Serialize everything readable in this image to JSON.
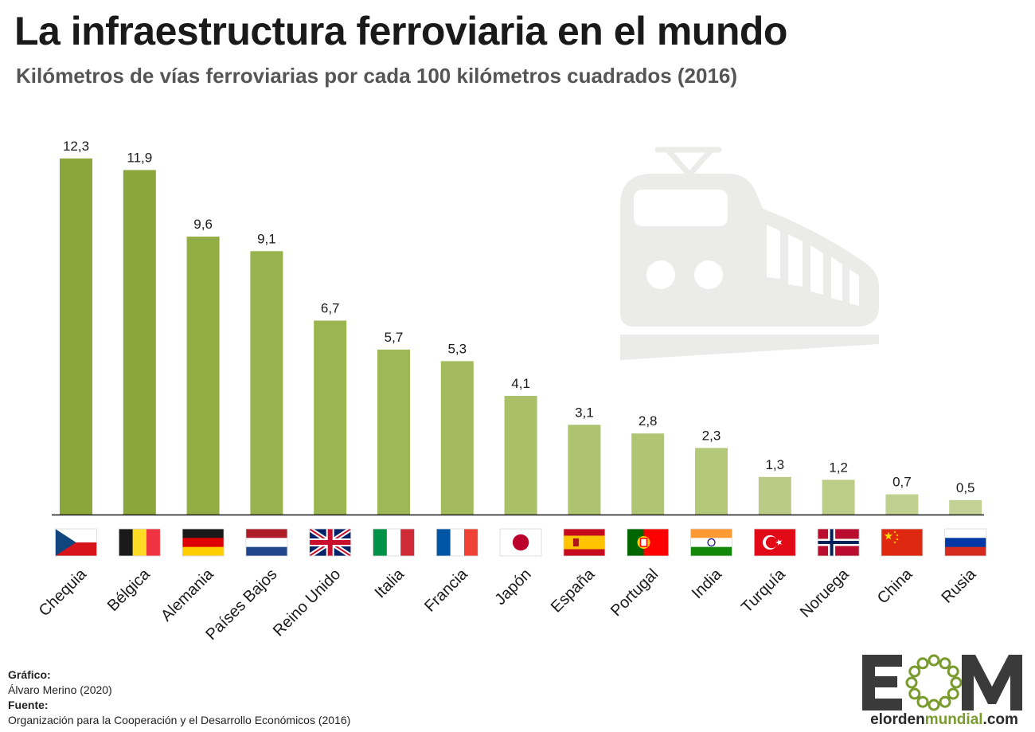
{
  "header": {
    "title": "La infraestructura ferroviaria en el mundo",
    "subtitle": "Kilómetros de vías ferroviarias por cada 100 kilómetros cuadrados (2016)"
  },
  "chart_data": {
    "type": "bar",
    "title": "La infraestructura ferroviaria en el mundo",
    "subtitle": "Kilómetros de vías ferroviarias por cada 100 kilómetros cuadrados (2016)",
    "categories": [
      "Chequia",
      "Bélgica",
      "Alemania",
      "Países Bajos",
      "Reino Unido",
      "Italia",
      "Francia",
      "Japón",
      "España",
      "Portugal",
      "India",
      "Turquía",
      "Noruega",
      "China",
      "Rusia"
    ],
    "values": [
      12.3,
      11.9,
      9.6,
      9.1,
      6.7,
      5.7,
      5.3,
      4.1,
      3.1,
      2.8,
      2.3,
      1.3,
      1.2,
      0.7,
      0.5
    ],
    "value_labels": [
      "12,3",
      "11,9",
      "9,6",
      "9,1",
      "6,7",
      "5,7",
      "5,3",
      "4,1",
      "3,1",
      "2,8",
      "2,3",
      "1,3",
      "1,2",
      "0,7",
      "0,5"
    ],
    "flags": [
      "czech-flag",
      "belgium-flag",
      "germany-flag",
      "netherlands-flag",
      "uk-flag",
      "italy-flag",
      "france-flag",
      "japan-flag",
      "spain-flag",
      "portugal-flag",
      "india-flag",
      "turkey-flag",
      "norway-flag",
      "china-flag",
      "russia-flag"
    ],
    "bar_colors": [
      "#8ba63a",
      "#8ba63a",
      "#92ad44",
      "#98b24d",
      "#9bb551",
      "#9fb857",
      "#a3bb5d",
      "#a9bf68",
      "#adc36f",
      "#b0c574",
      "#b4c87a",
      "#b9cb84",
      "#bccd88",
      "#c0d08f",
      "#c3d294"
    ],
    "ylim": [
      0,
      12.3
    ],
    "grid": false,
    "legend": "none",
    "xlabel": "",
    "ylabel": ""
  },
  "decoration": {
    "icon": "train-icon",
    "icon_color": "#ebebea"
  },
  "credits": {
    "graphic_label": "Gráfico:",
    "graphic_value": "Álvaro Merino (2020)",
    "source_label": "Fuente:",
    "source_value": "Organización para la Cooperación y el Desarrollo Económicos (2016)"
  },
  "logo": {
    "letters": "EOM",
    "url_prefix": "elorden",
    "url_accent": "mundial",
    "url_suffix": ".com",
    "dark_color": "#3a3a3a",
    "accent_color": "#7a9b2e"
  }
}
